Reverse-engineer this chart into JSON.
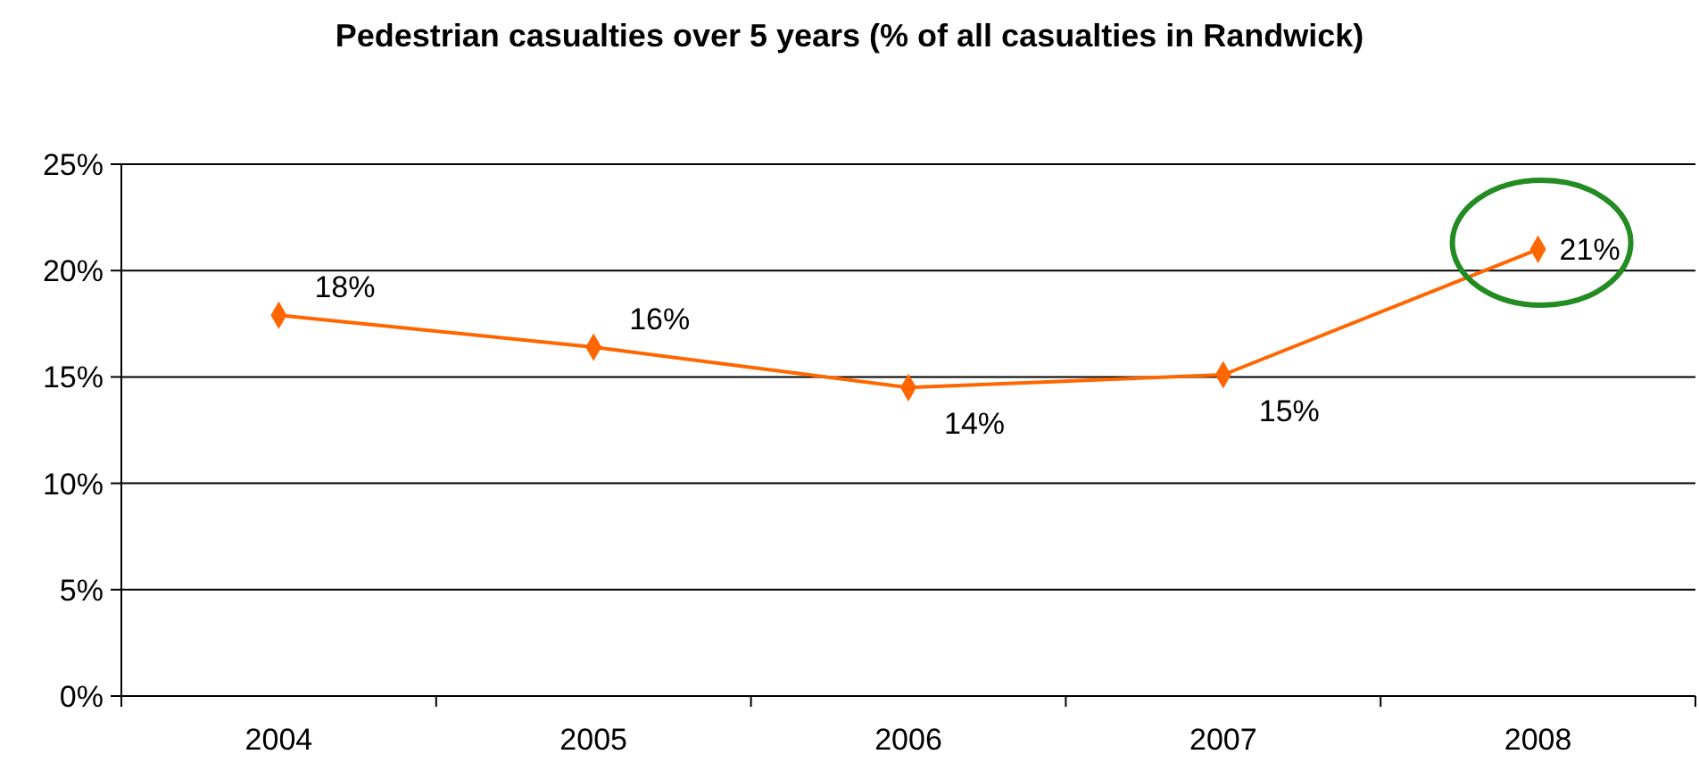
{
  "chart_data": {
    "type": "line",
    "title": "Pedestrian casualties over 5 years (% of all casualties in Randwick)",
    "categories": [
      "2004",
      "2005",
      "2006",
      "2007",
      "2008"
    ],
    "series": [
      {
        "color": "#ff6600",
        "values": [
          17.9,
          16.4,
          14.5,
          15.1,
          21.0
        ],
        "value_labels": [
          "18%",
          "16%",
          "14%",
          "15%",
          "21%"
        ]
      }
    ],
    "ylim": [
      0,
      25
    ],
    "yticks": [
      {
        "value": 0,
        "label": "0%"
      },
      {
        "value": 5,
        "label": "5%"
      },
      {
        "value": 10,
        "label": "10%"
      },
      {
        "value": 15,
        "label": "15%"
      },
      {
        "value": 20,
        "label": "20%"
      },
      {
        "value": 25,
        "label": "25%"
      }
    ],
    "grid": "y",
    "marker": "diamond",
    "line_style": "solid"
  }
}
